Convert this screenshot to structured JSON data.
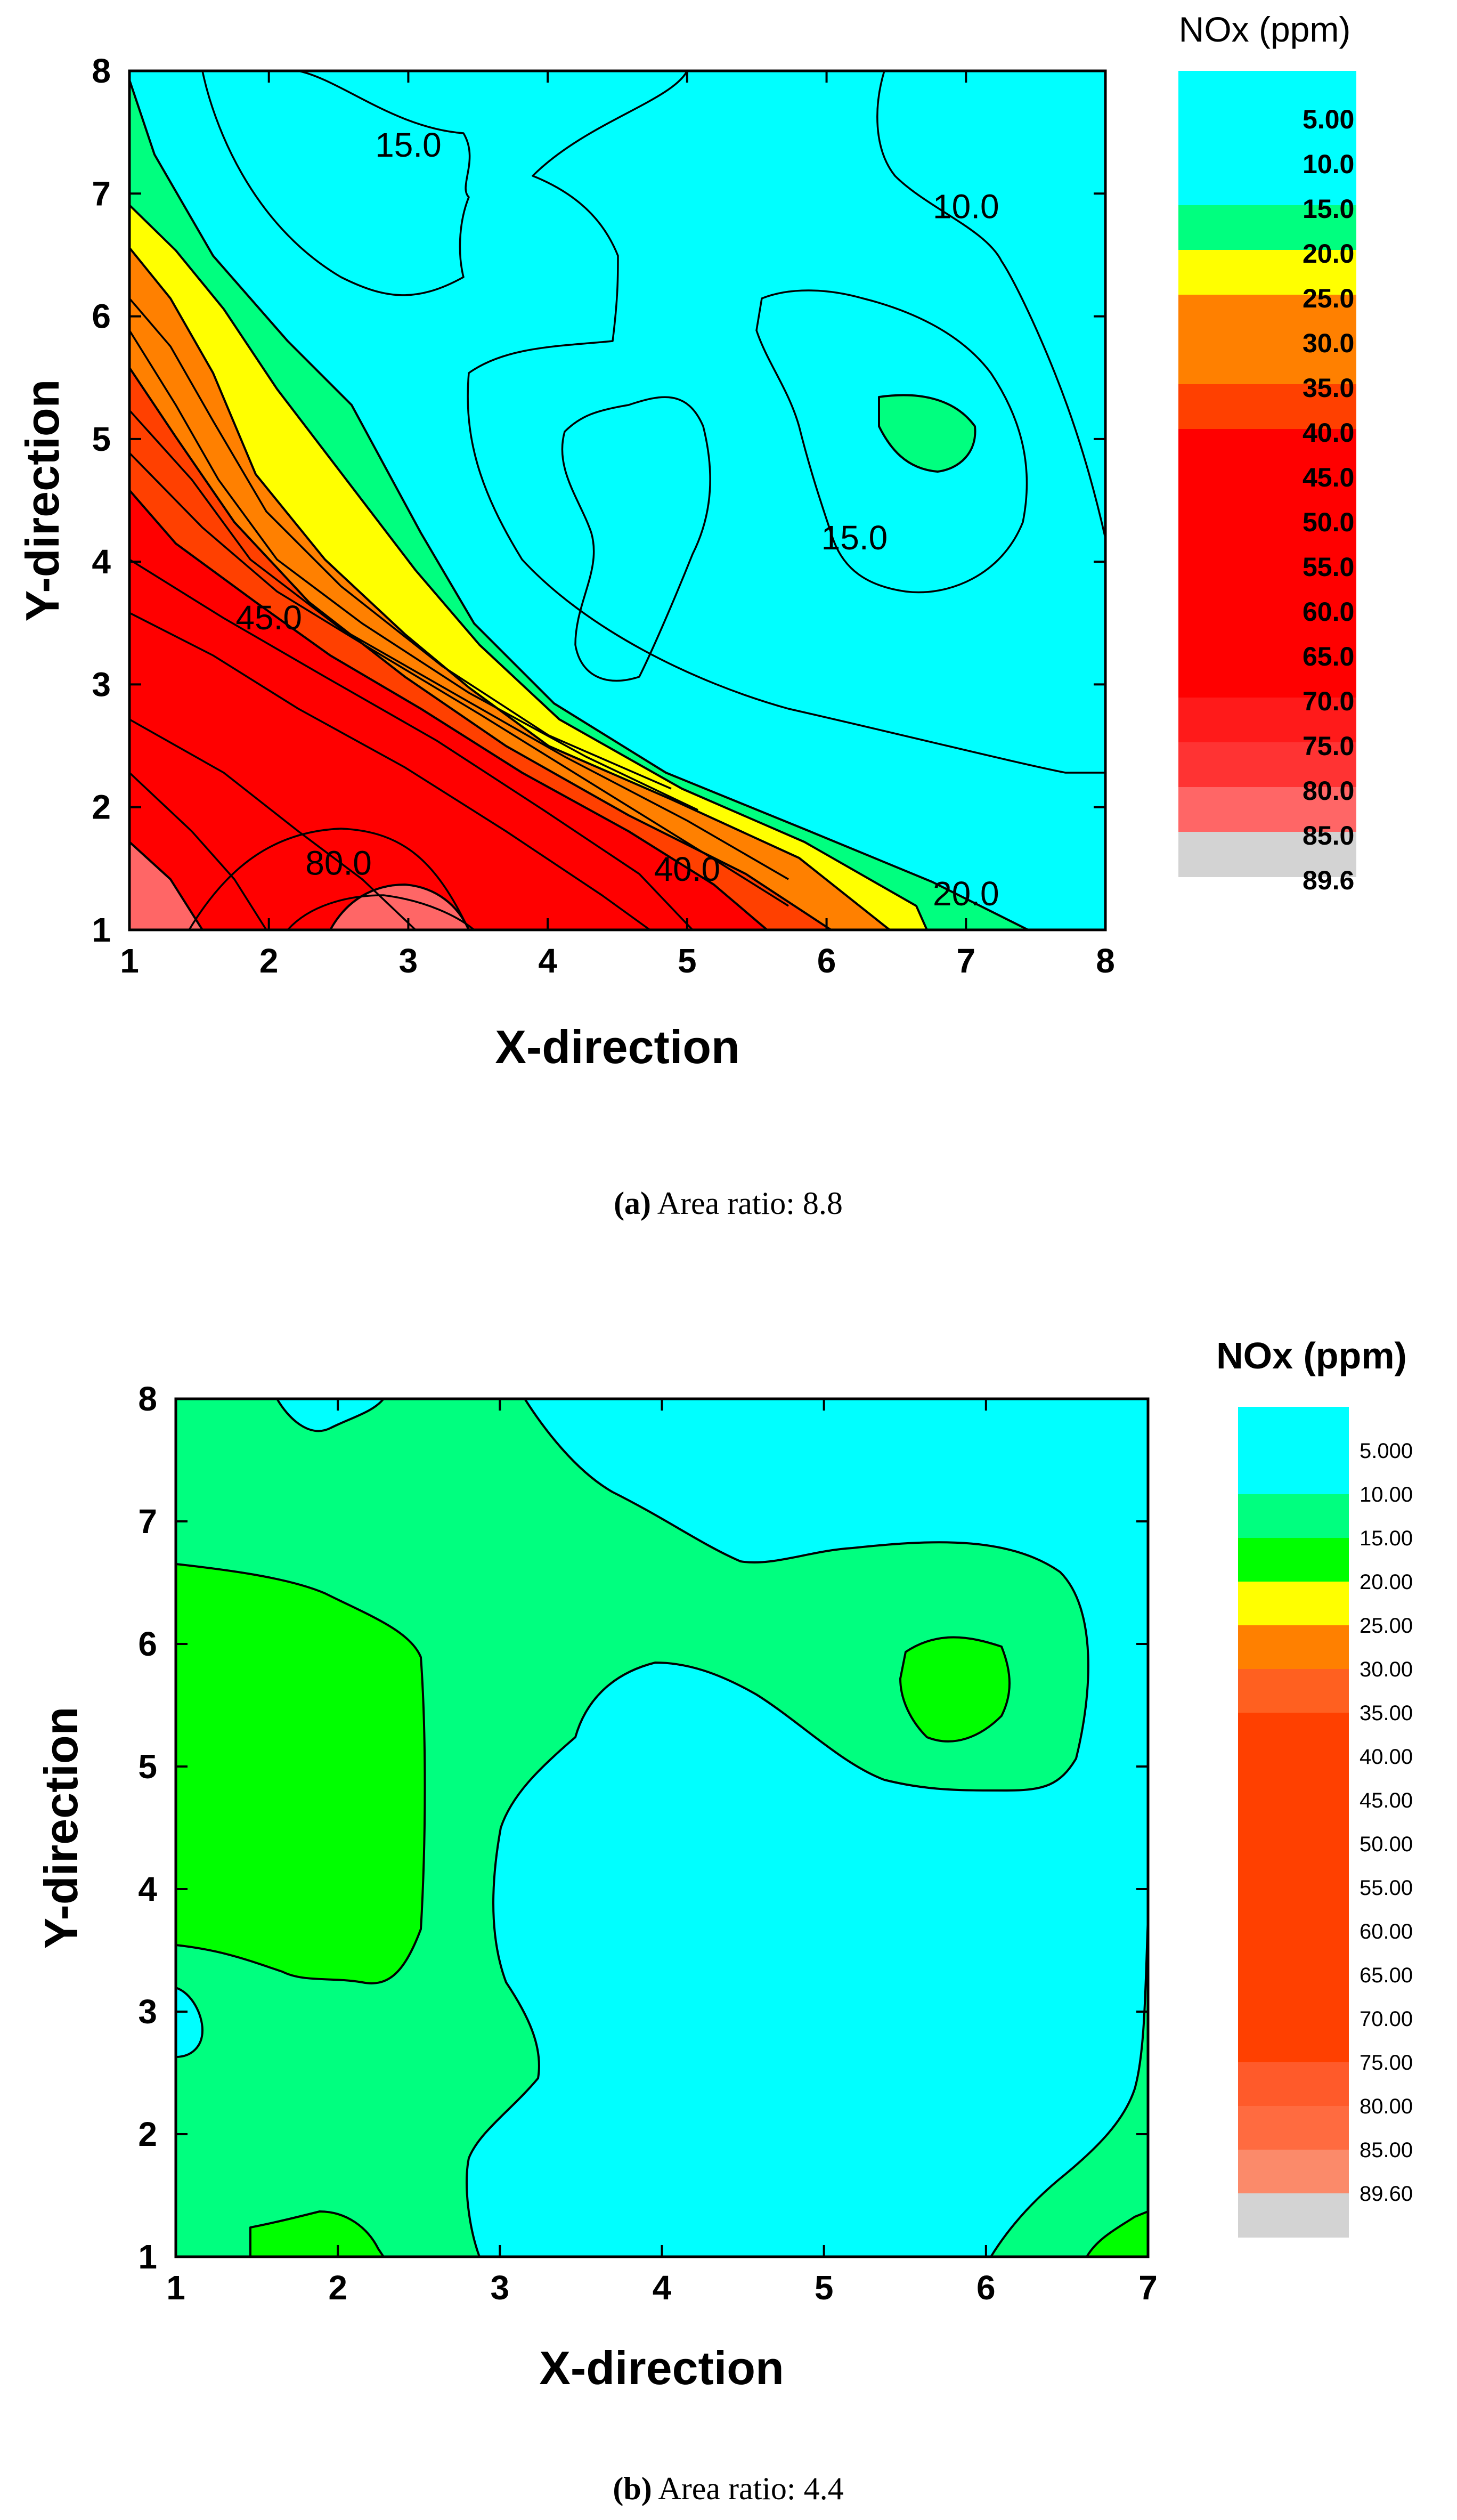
{
  "chart_data": [
    {
      "id": "a",
      "type": "contour",
      "xlabel": "X-direction",
      "ylabel": "Y-direction",
      "xlim": [
        1,
        8
      ],
      "ylim": [
        1,
        8
      ],
      "xticks": [
        "1",
        "2",
        "3",
        "4",
        "5",
        "6",
        "7",
        "8"
      ],
      "yticks": [
        "1",
        "2",
        "3",
        "4",
        "5",
        "6",
        "7",
        "8"
      ],
      "colorbar_title": "NOx (ppm)",
      "colorbar_levels": [
        "5.00",
        "10.0",
        "15.0",
        "20.0",
        "25.0",
        "30.0",
        "35.0",
        "40.0",
        "45.0",
        "50.0",
        "55.0",
        "60.0",
        "65.0",
        "70.0",
        "75.0",
        "80.0",
        "85.0",
        "89.6"
      ],
      "colorbar_colors": [
        "#00ffff",
        "#00ffff",
        "#00ffff",
        "#00ff7f",
        "#ffff00",
        "#ff8000",
        "#ff8000",
        "#ff4000",
        "#ff0000",
        "#ff0000",
        "#ff0000",
        "#ff0000",
        "#ff0000",
        "#ff0000",
        "#ff1a1a",
        "#ff3333",
        "#ff6666",
        "#d3d3d3"
      ],
      "contour_labels": [
        {
          "text": "15.0",
          "x": 3.0,
          "y": 7.3
        },
        {
          "text": "10.0",
          "x": 7.0,
          "y": 6.8
        },
        {
          "text": "15.0",
          "x": 6.2,
          "y": 4.1
        },
        {
          "text": "45.0",
          "x": 2.0,
          "y": 3.45
        },
        {
          "text": "80.0",
          "x": 2.5,
          "y": 1.45
        },
        {
          "text": "40.0",
          "x": 5.0,
          "y": 1.4
        },
        {
          "text": "20.0",
          "x": 7.0,
          "y": 1.2
        }
      ],
      "caption_letter": "(a)",
      "caption_text": " Area ratio: 8.8"
    },
    {
      "id": "b",
      "type": "contour",
      "xlabel": "X-direction",
      "ylabel": "Y-direction",
      "xlim": [
        1,
        7
      ],
      "ylim": [
        1,
        8
      ],
      "xticks": [
        "1",
        "2",
        "3",
        "4",
        "5",
        "6",
        "7"
      ],
      "yticks": [
        "1",
        "2",
        "3",
        "4",
        "5",
        "6",
        "7",
        "8"
      ],
      "colorbar_title": "NOx (ppm)",
      "colorbar_levels": [
        "5.000",
        "10.00",
        "15.00",
        "20.00",
        "25.00",
        "30.00",
        "35.00",
        "40.00",
        "45.00",
        "50.00",
        "55.00",
        "60.00",
        "65.00",
        "70.00",
        "75.00",
        "80.00",
        "85.00",
        "89.60"
      ],
      "colorbar_colors": [
        "#00ffff",
        "#00ffff",
        "#00ff7f",
        "#00ff00",
        "#ffff00",
        "#ff8000",
        "#ff6020",
        "#ff4000",
        "#ff4000",
        "#ff4000",
        "#ff4000",
        "#ff4000",
        "#ff4000",
        "#ff4000",
        "#ff4000",
        "#ff5a2a",
        "#ff6b40",
        "#fb8a6a",
        "#d3d3d3"
      ],
      "caption_letter": "(b)",
      "caption_text": " Area ratio: 4.4"
    }
  ]
}
